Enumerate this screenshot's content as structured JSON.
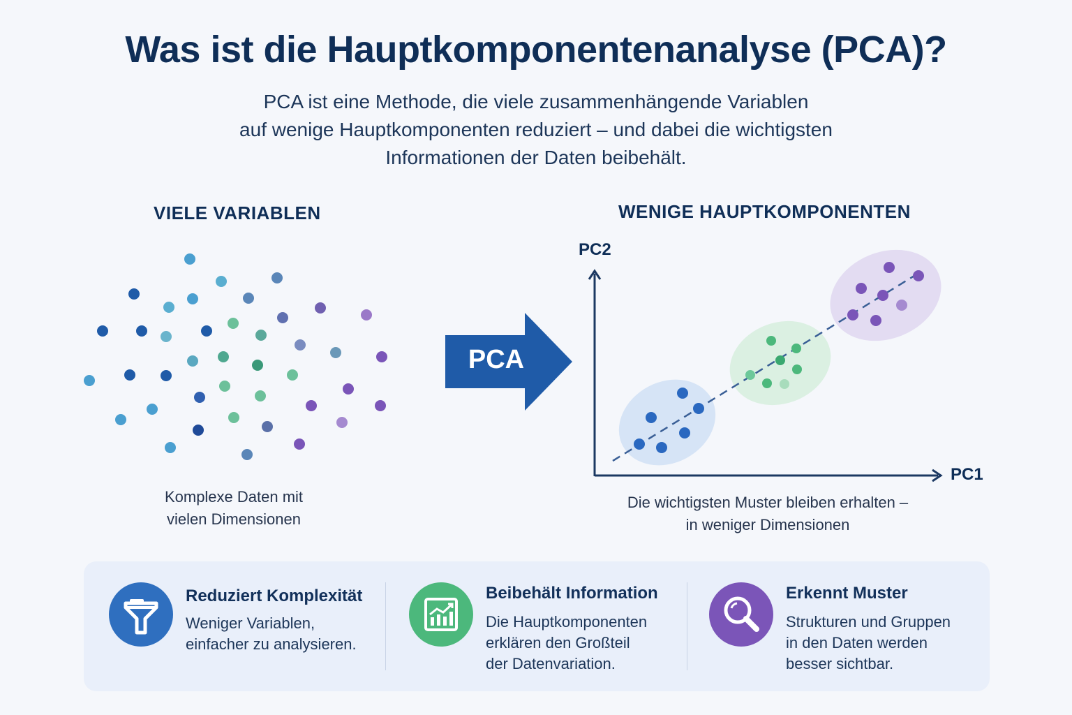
{
  "title": "Was ist die Hauptkomponentenanalyse (PCA)?",
  "subtitle": [
    "PCA ist eine Methode, die viele zusammenhängende Variablen",
    "auf wenige Hauptkomponenten reduziert – und dabei die wichtigsten",
    "Informationen der Daten beibehält."
  ],
  "left": {
    "heading": "VIELE VARIABLEN",
    "caption": [
      "Komplexe Daten mit",
      "vielen Dimensionen"
    ]
  },
  "arrow": {
    "label": "PCA",
    "color": "#1f5ba8"
  },
  "right": {
    "heading": "WENIGE HAUPTKOMPONENTEN",
    "y_axis": "PC2",
    "x_axis": "PC1",
    "caption": [
      "Die wichtigsten Muster bleiben erhalten –",
      "in weniger Dimensionen"
    ]
  },
  "features": [
    {
      "title": "Reduziert Komplexität",
      "desc": [
        "Weniger Variablen,",
        "einfacher zu analysieren."
      ],
      "icon": "filter-icon",
      "color": "#2f6fbf"
    },
    {
      "title": "Beibehält Information",
      "desc": [
        "Die Hauptkomponenten",
        "erklären den Großteil",
        "der Datenvariation."
      ],
      "icon": "chart-icon",
      "color": "#4cb87c"
    },
    {
      "title": "Erkennt Muster",
      "desc": [
        "Strukturen und Gruppen",
        "in den Daten werden",
        "besser sichtbar."
      ],
      "icon": "magnifier-icon",
      "color": "#7b55b8"
    }
  ],
  "colors": {
    "blue": "#2f6fbf",
    "green": "#4cb87c",
    "purple": "#7b55b8",
    "navy": "#0f2e57"
  }
}
